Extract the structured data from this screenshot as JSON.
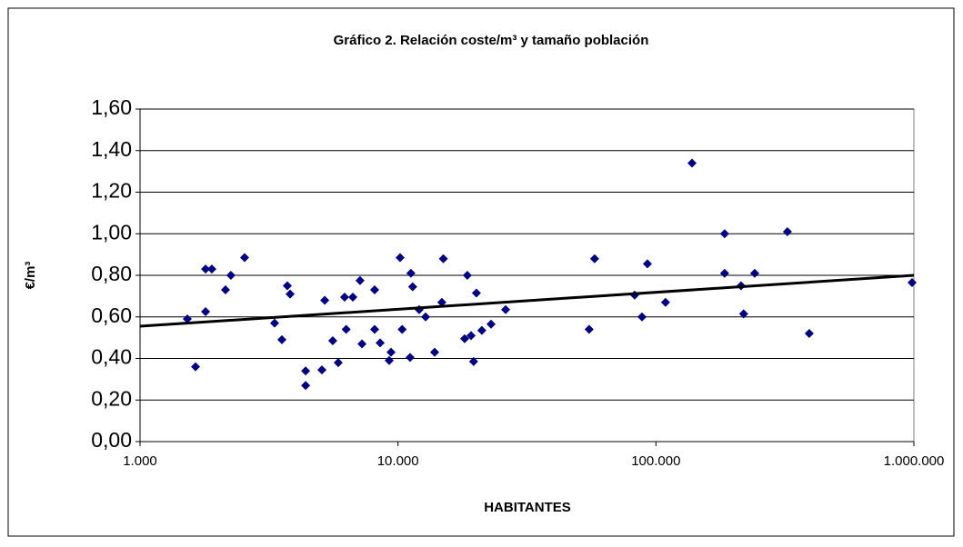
{
  "chart_data": {
    "type": "scatter",
    "title": "Gráfico 2. Relación coste/m³ y tamaño población",
    "x_label": "HABITANTES",
    "y_label": "€/m³",
    "xscale": "log",
    "grid": true,
    "color": "#000080",
    "xlim": [
      1000,
      1000000
    ],
    "xticks": [
      {
        "value": 1000,
        "label": "1.000"
      },
      {
        "value": 10000,
        "label": "10.000"
      },
      {
        "value": 100000,
        "label": "100.000"
      },
      {
        "value": 1000000,
        "label": "1.000.000"
      }
    ],
    "ylim": [
      0,
      1.6
    ],
    "yticks": [
      {
        "value": 0,
        "label": "0,00"
      },
      {
        "value": 0.2,
        "label": "0,20"
      },
      {
        "value": 0.4,
        "label": "0,40"
      },
      {
        "value": 0.6,
        "label": "0,60"
      },
      {
        "value": 0.8,
        "label": "0,80"
      },
      {
        "value": 1.0,
        "label": "1,00"
      },
      {
        "value": 1.2,
        "label": "1,20"
      },
      {
        "value": 1.4,
        "label": "1,40"
      },
      {
        "value": 1.6,
        "label": "1,60"
      }
    ],
    "x": [
      1525,
      1641,
      1795,
      1795,
      1898,
      2144,
      2250,
      2543,
      3324,
      3548,
      3724,
      3818,
      4385,
      4385,
      5070,
      5200,
      5585,
      5865,
      6209,
      6296,
      6683,
      7125,
      7250,
      8117,
      8117,
      8526,
      9245,
      9400,
      10190,
      10380,
      11140,
      11220,
      11400,
      12080,
      12790,
      13870,
      14790,
      14990,
      18130,
      18570,
      19200,
      19640,
      20140,
      21140,
      22950,
      26140,
      55080,
      57830,
      82690,
      88290,
      92680,
      108900,
      138000,
      184600,
      184600,
      213800,
      218800,
      241500,
      323400,
      392900,
      983900
    ],
    "values": [
      0.59,
      0.36,
      0.83,
      0.625,
      0.83,
      0.73,
      0.8,
      0.885,
      0.57,
      0.49,
      0.75,
      0.71,
      0.34,
      0.27,
      0.345,
      0.68,
      0.485,
      0.38,
      0.695,
      0.54,
      0.695,
      0.775,
      0.47,
      0.73,
      0.54,
      0.475,
      0.39,
      0.43,
      0.885,
      0.54,
      0.405,
      0.81,
      0.745,
      0.635,
      0.6,
      0.43,
      0.67,
      0.88,
      0.495,
      0.8,
      0.51,
      0.385,
      0.715,
      0.535,
      0.565,
      0.635,
      0.54,
      0.88,
      0.705,
      0.6,
      0.855,
      0.67,
      1.34,
      1.0,
      0.81,
      0.75,
      0.615,
      0.81,
      1.01,
      0.52,
      0.765
    ],
    "trendline": {
      "color": "#000000",
      "x": [
        1000,
        1000000
      ],
      "values": [
        0.555,
        0.8
      ]
    }
  }
}
